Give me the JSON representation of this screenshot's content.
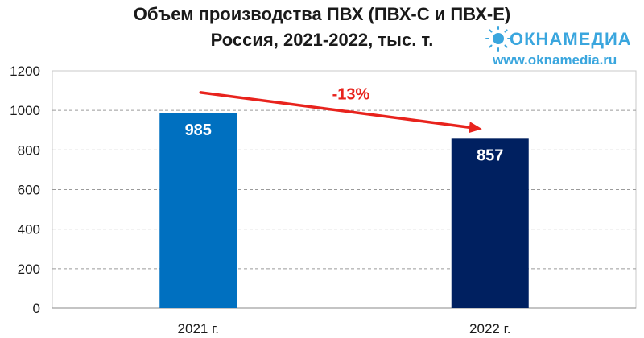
{
  "chart_data": {
    "type": "bar",
    "title_lines": [
      "Объем производства ПВХ (ПВХ-С и ПВХ-Е)",
      "Россия, 2021-2022, тыс. т."
    ],
    "categories": [
      "2021 г.",
      "2022 г."
    ],
    "values": [
      985,
      857
    ],
    "data_labels": [
      "985",
      "857"
    ],
    "bar_colors": [
      "#0070c0",
      "#002060"
    ],
    "ylim": [
      0,
      1200
    ],
    "yticks": [
      0,
      200,
      400,
      600,
      800,
      1000,
      1200
    ],
    "grid": true,
    "annotation": {
      "text": "-13%",
      "color": "#e8231d"
    }
  },
  "logo": {
    "brand": "ОКНАМЕДИА",
    "url": "www.oknamedia.ru",
    "color": "#3aa6de"
  }
}
